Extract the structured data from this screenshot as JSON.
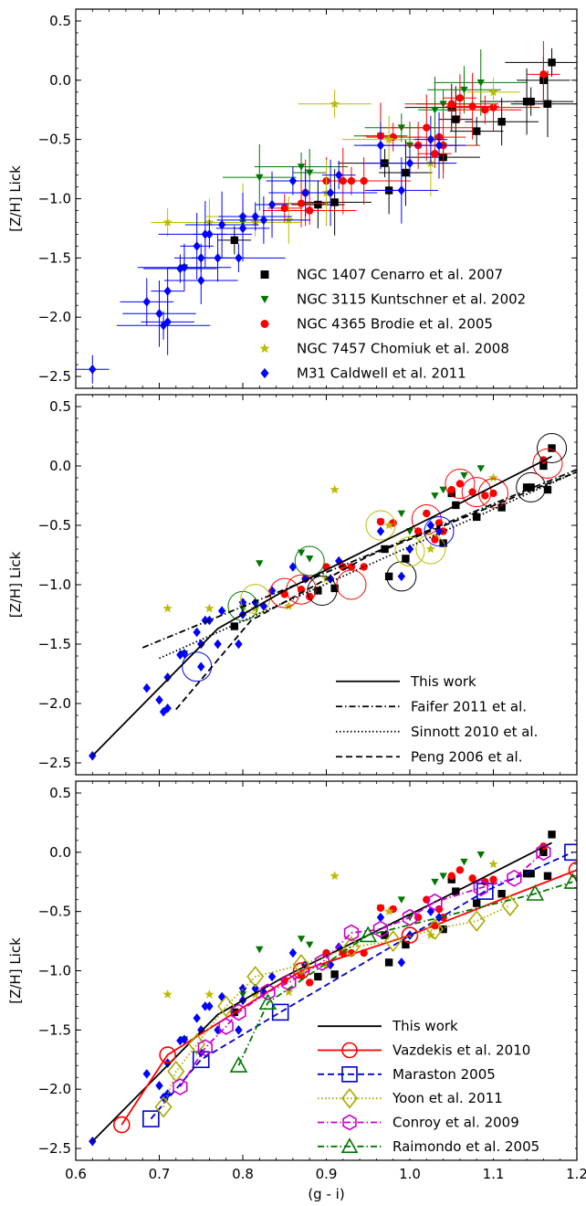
{
  "chart_data": [
    {
      "type": "scatter",
      "panel": "top",
      "ylabel": "[Z/H] Lick",
      "xlim": [
        0.6,
        1.2
      ],
      "ylim": [
        -2.6,
        0.6
      ],
      "yticks": [
        "0.5",
        "0.0",
        "−0.5",
        "−1.0",
        "−1.5",
        "−2.0",
        "−2.5"
      ],
      "legend_position": "lower-right",
      "series": [
        {
          "name": "NGC 1407 Cenarro et al. 2007",
          "marker": "square",
          "color": "#000000",
          "x": [
            0.79,
            0.89,
            0.91,
            0.97,
            0.975,
            0.995,
            1.04,
            1.05,
            1.055,
            1.08,
            1.11,
            1.14,
            1.145,
            1.16,
            1.165,
            1.17
          ],
          "y": [
            -1.35,
            -1.05,
            -1.03,
            -0.7,
            -0.93,
            -0.78,
            -0.65,
            -0.23,
            -0.33,
            -0.43,
            -0.35,
            -0.18,
            -0.18,
            0.0,
            -0.2,
            0.15
          ]
        },
        {
          "name": "NGC 3115 Kuntschner et al. 2002",
          "marker": "triangle-down",
          "color": "#007700",
          "x": [
            0.73,
            0.8,
            0.82,
            0.87,
            0.88,
            0.965,
            0.99,
            1.0,
            1.03,
            1.04,
            1.065,
            1.085
          ],
          "y": [
            -1.58,
            -1.2,
            -0.82,
            -0.73,
            -0.78,
            -0.47,
            -0.4,
            -0.55,
            -0.25,
            -0.2,
            -0.08,
            -0.02
          ]
        },
        {
          "name": "NGC 4365 Brodie et al. 2005",
          "marker": "circle",
          "color": "#ff0000",
          "x": [
            0.85,
            0.87,
            0.875,
            0.88,
            0.9,
            0.92,
            0.93,
            0.945,
            0.965,
            0.98,
            1.01,
            1.02,
            1.03,
            1.035,
            1.04,
            1.05,
            1.06,
            1.075,
            1.09,
            1.1,
            1.16
          ],
          "y": [
            -1.08,
            -1.04,
            -0.95,
            -1.1,
            -0.85,
            -0.85,
            -0.85,
            -0.85,
            -0.47,
            -0.48,
            -0.55,
            -0.4,
            -0.62,
            -0.48,
            -0.55,
            -0.2,
            -0.15,
            -0.22,
            -0.25,
            -0.23,
            0.05
          ]
        },
        {
          "name": "NGC 7457 Chomiuk et al. 2008",
          "marker": "star",
          "color": "#bbbb00",
          "x": [
            0.71,
            0.76,
            0.8,
            0.815,
            0.855,
            0.9,
            0.91,
            0.975,
            1.025,
            1.1
          ],
          "y": [
            -1.2,
            -1.2,
            -1.15,
            -1.2,
            -1.18,
            -0.95,
            -0.2,
            -0.5,
            -0.7,
            -0.1
          ]
        },
        {
          "name": "M31 Caldwell et al. 2011",
          "marker": "diamond",
          "color": "#0000ff",
          "x": [
            0.62,
            0.685,
            0.7,
            0.705,
            0.71,
            0.71,
            0.725,
            0.73,
            0.745,
            0.75,
            0.75,
            0.755,
            0.76,
            0.77,
            0.775,
            0.795,
            0.8,
            0.8,
            0.815,
            0.825,
            0.835,
            0.86,
            0.875,
            0.905,
            0.915,
            0.965,
            0.99,
            1.0,
            1.025,
            1.035
          ],
          "y": [
            -2.44,
            -1.87,
            -1.97,
            -2.07,
            -1.78,
            -2.04,
            -1.59,
            -1.58,
            -1.4,
            -1.5,
            -1.69,
            -1.3,
            -1.3,
            -1.5,
            -1.22,
            -1.5,
            -1.15,
            -1.25,
            -1.15,
            -1.18,
            -1.05,
            -0.85,
            -0.95,
            -0.95,
            -0.8,
            -0.55,
            -0.93,
            -0.7,
            -0.5,
            -0.55
          ]
        }
      ]
    },
    {
      "type": "line",
      "panel": "middle",
      "ylabel": "[Z/H] Lick",
      "xlim": [
        0.6,
        1.2
      ],
      "ylim": [
        -2.6,
        0.6
      ],
      "yticks": [
        "0.5",
        "0.0",
        "−0.5",
        "−1.0",
        "−1.5",
        "−2.0",
        "−2.5"
      ],
      "legend_position": "lower-right",
      "background": "same data points as top panel, circled points highlighted",
      "series": [
        {
          "name": "This work",
          "style": "solid",
          "color": "#000000",
          "x": [
            0.62,
            0.77,
            0.85,
            0.95,
            1.05,
            1.17
          ],
          "y": [
            -2.44,
            -1.37,
            -1.05,
            -0.7,
            -0.35,
            0.08
          ]
        },
        {
          "name": "Faifer 2011  et al.",
          "style": "dashdot",
          "color": "#000000",
          "x": [
            0.68,
            1.2
          ],
          "y": [
            -1.53,
            -0.03
          ]
        },
        {
          "name": "Sinnott 2010  et al.",
          "style": "dotted",
          "color": "#000000",
          "x": [
            0.7,
            1.2
          ],
          "y": [
            -1.62,
            -0.05
          ]
        },
        {
          "name": "Peng 2006  et al.",
          "style": "dashed",
          "color": "#000000",
          "x": [
            0.72,
            0.81,
            0.95,
            1.2
          ],
          "y": [
            -2.05,
            -1.3,
            -0.76,
            -0.05
          ]
        }
      ]
    },
    {
      "type": "line",
      "panel": "bottom",
      "ylabel": "[Z/H] Lick",
      "xlabel": "(g - i)",
      "xlim": [
        0.6,
        1.2
      ],
      "ylim": [
        -2.6,
        0.6
      ],
      "xticks": [
        "0.6",
        "0.7",
        "0.8",
        "0.9",
        "1.0",
        "1.1",
        "1.2"
      ],
      "yticks": [
        "0.5",
        "0.0",
        "−0.5",
        "−1.0",
        "−1.5",
        "−2.0",
        "−2.5"
      ],
      "legend_position": "lower-right",
      "series": [
        {
          "name": "This work",
          "style": "solid",
          "color": "#000000",
          "marker": "none",
          "x": [
            0.62,
            0.77,
            0.85,
            0.95,
            1.05,
            1.17
          ],
          "y": [
            -2.44,
            -1.37,
            -1.05,
            -0.7,
            -0.35,
            0.08
          ]
        },
        {
          "name": "Vazdekis et al. 2010",
          "style": "solid",
          "color": "#ff0000",
          "marker": "circle",
          "x": [
            0.655,
            0.71,
            0.87,
            1.0,
            1.2
          ],
          "y": [
            -2.3,
            -1.71,
            -1.0,
            -0.7,
            -0.15
          ]
        },
        {
          "name": "Maraston 2005",
          "style": "dashed",
          "color": "#0000cc",
          "marker": "square",
          "x": [
            0.69,
            0.75,
            0.845,
            1.09,
            1.195
          ],
          "y": [
            -2.25,
            -1.75,
            -1.35,
            -0.33,
            0.0
          ]
        },
        {
          "name": "Yoon et al. 2011",
          "style": "dotted",
          "color": "#aaaa00",
          "marker": "diamond",
          "x": [
            0.705,
            0.72,
            0.745,
            0.78,
            0.815,
            0.87,
            0.93,
            0.98,
            1.03,
            1.08,
            1.12
          ],
          "y": [
            -2.15,
            -1.85,
            -1.62,
            -1.3,
            -1.05,
            -0.95,
            -0.8,
            -0.75,
            -0.65,
            -0.58,
            -0.45
          ]
        },
        {
          "name": "Conroy et al. 2009",
          "style": "dashdot",
          "color": "#cc00cc",
          "marker": "hexagon",
          "x": [
            0.725,
            0.755,
            0.78,
            0.795,
            0.83,
            0.855,
            0.895,
            0.93,
            0.965,
            1.0,
            1.03,
            1.085,
            1.125,
            1.16
          ],
          "y": [
            -1.98,
            -1.65,
            -1.47,
            -1.35,
            -1.18,
            -1.1,
            -0.93,
            -0.68,
            -0.65,
            -0.55,
            -0.42,
            -0.3,
            -0.22,
            0.0
          ]
        },
        {
          "name": "Raimondo et al. 2005",
          "style": "dashdot",
          "color": "#007700",
          "marker": "triangle",
          "x": [
            0.795,
            0.83,
            0.95,
            1.15,
            1.195
          ],
          "y": [
            -1.8,
            -1.27,
            -0.7,
            -0.35,
            -0.25
          ]
        }
      ]
    }
  ]
}
